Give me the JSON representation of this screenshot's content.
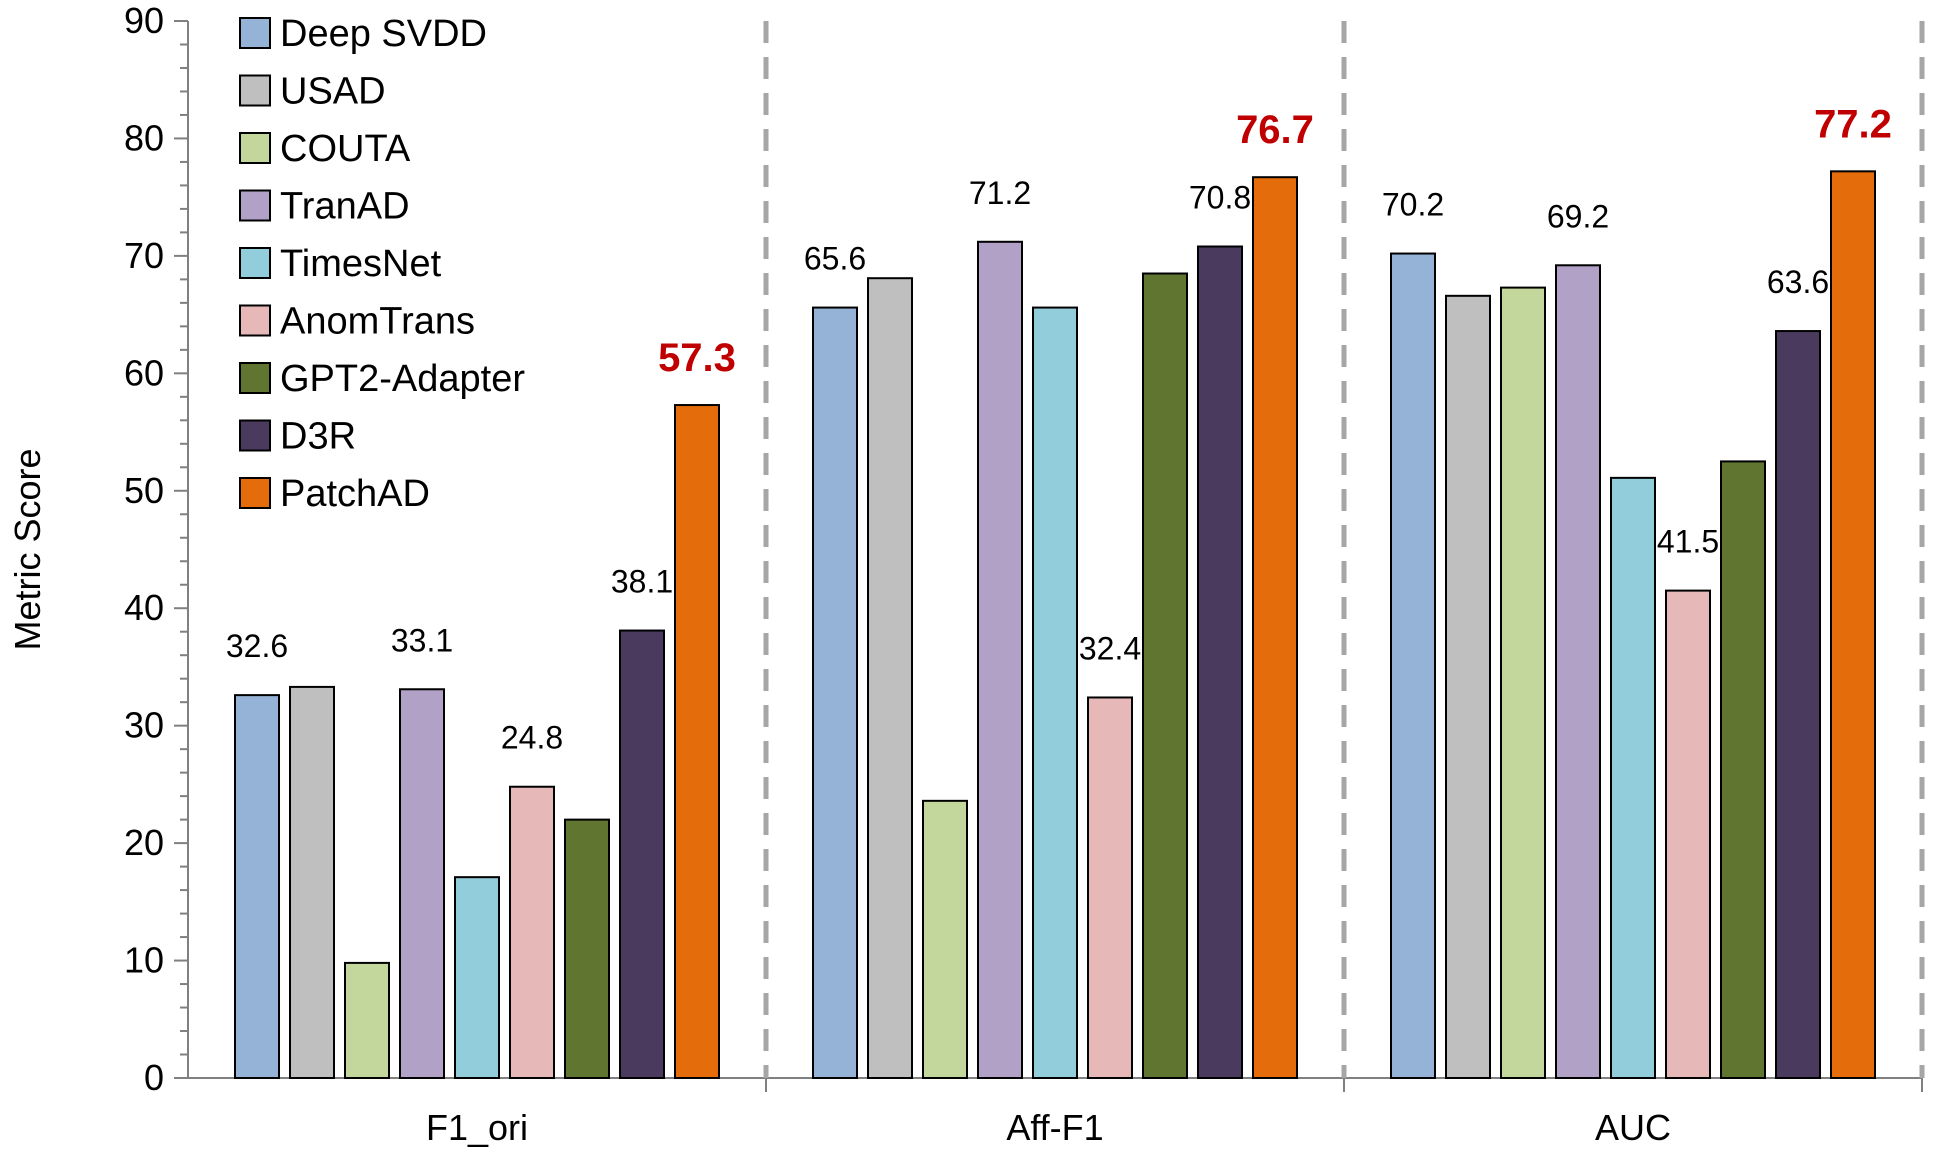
{
  "chart_data": {
    "type": "bar",
    "title": "",
    "xlabel": "",
    "ylabel": "Metric Score",
    "ylim": [
      0,
      90
    ],
    "yticks": [
      0,
      10,
      20,
      30,
      40,
      50,
      60,
      70,
      80,
      90
    ],
    "grid": false,
    "legend_position": "top-left",
    "categories": [
      "F1_ori",
      "Aff-F1",
      "AUC"
    ],
    "series": [
      {
        "name": "Deep SVDD",
        "color": "#95B3D7",
        "values": [
          32.6,
          65.6,
          70.2
        ]
      },
      {
        "name": "USAD",
        "color": "#BFBFBF",
        "values": [
          33.3,
          68.1,
          66.6
        ]
      },
      {
        "name": "COUTA",
        "color": "#C3D69B",
        "values": [
          9.8,
          23.6,
          67.3
        ]
      },
      {
        "name": "TranAD",
        "color": "#B2A1C7",
        "values": [
          33.1,
          71.2,
          69.2
        ]
      },
      {
        "name": "TimesNet",
        "color": "#92CDDC",
        "values": [
          17.1,
          65.6,
          51.1
        ]
      },
      {
        "name": "AnomTrans",
        "color": "#E6B9B8",
        "values": [
          24.8,
          32.4,
          41.5
        ]
      },
      {
        "name": "GPT2-Adapter",
        "color": "#5F7530",
        "values": [
          22.0,
          68.5,
          52.5
        ]
      },
      {
        "name": "D3R",
        "color": "#4A3A5E",
        "values": [
          38.1,
          70.8,
          63.6
        ]
      },
      {
        "name": "PatchAD",
        "color": "#E46C0A",
        "values": [
          57.3,
          76.7,
          77.2
        ]
      }
    ],
    "data_labels": [
      {
        "series": "Deep SVDD",
        "category": "F1_ori",
        "text": "32.6",
        "highlight": false
      },
      {
        "series": "TranAD",
        "category": "F1_ori",
        "text": "33.1",
        "highlight": false
      },
      {
        "series": "AnomTrans",
        "category": "F1_ori",
        "text": "24.8",
        "highlight": false
      },
      {
        "series": "D3R",
        "category": "F1_ori",
        "text": "38.1",
        "highlight": false
      },
      {
        "series": "PatchAD",
        "category": "F1_ori",
        "text": "57.3",
        "highlight": true
      },
      {
        "series": "Deep SVDD",
        "category": "Aff-F1",
        "text": "65.6",
        "highlight": false
      },
      {
        "series": "TranAD",
        "category": "Aff-F1",
        "text": "71.2",
        "highlight": false
      },
      {
        "series": "AnomTrans",
        "category": "Aff-F1",
        "text": "32.4",
        "highlight": false
      },
      {
        "series": "D3R",
        "category": "Aff-F1",
        "text": "70.8",
        "highlight": false
      },
      {
        "series": "PatchAD",
        "category": "Aff-F1",
        "text": "76.7",
        "highlight": true
      },
      {
        "series": "Deep SVDD",
        "category": "AUC",
        "text": "70.2",
        "highlight": false
      },
      {
        "series": "TranAD",
        "category": "AUC",
        "text": "69.2",
        "highlight": false
      },
      {
        "series": "AnomTrans",
        "category": "AUC",
        "text": "41.5",
        "highlight": false
      },
      {
        "series": "D3R",
        "category": "AUC",
        "text": "63.6",
        "highlight": false
      },
      {
        "series": "PatchAD",
        "category": "AUC",
        "text": "77.2",
        "highlight": true
      }
    ],
    "highlight_color": "#C00000",
    "group_separator_style": "dashed"
  }
}
